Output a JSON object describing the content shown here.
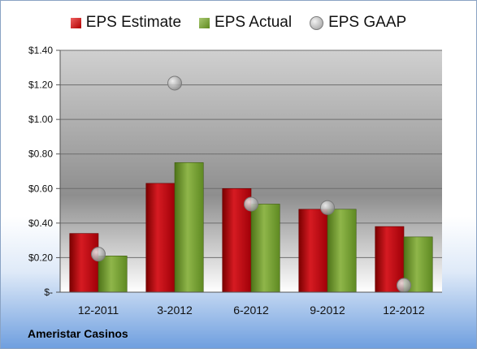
{
  "chart_data": {
    "type": "bar",
    "categories": [
      "12-2011",
      "3-2012",
      "6-2012",
      "9-2012",
      "12-2012"
    ],
    "series": [
      {
        "name": "EPS Estimate",
        "type": "bar",
        "color": "#c0141c",
        "values": [
          0.34,
          0.63,
          0.6,
          0.48,
          0.38
        ]
      },
      {
        "name": "EPS Actual",
        "type": "bar",
        "color": "#7aa035",
        "values": [
          0.21,
          0.75,
          0.51,
          0.48,
          0.32
        ]
      },
      {
        "name": "EPS GAAP",
        "type": "scatter",
        "color": "#b8b8b8",
        "values": [
          0.22,
          1.21,
          0.51,
          0.49,
          0.04
        ]
      }
    ],
    "ylim": [
      0,
      1.4
    ],
    "yticks": [
      0,
      0.2,
      0.4,
      0.6,
      0.8,
      1.0,
      1.2,
      1.4
    ],
    "ytick_labels": [
      "$-",
      "$0.20",
      "$0.40",
      "$0.60",
      "$0.80",
      "$1.00",
      "$1.20",
      "$1.40"
    ],
    "grid": true,
    "legend_position": "top"
  },
  "footer": {
    "company": "Ameristar Casinos"
  }
}
